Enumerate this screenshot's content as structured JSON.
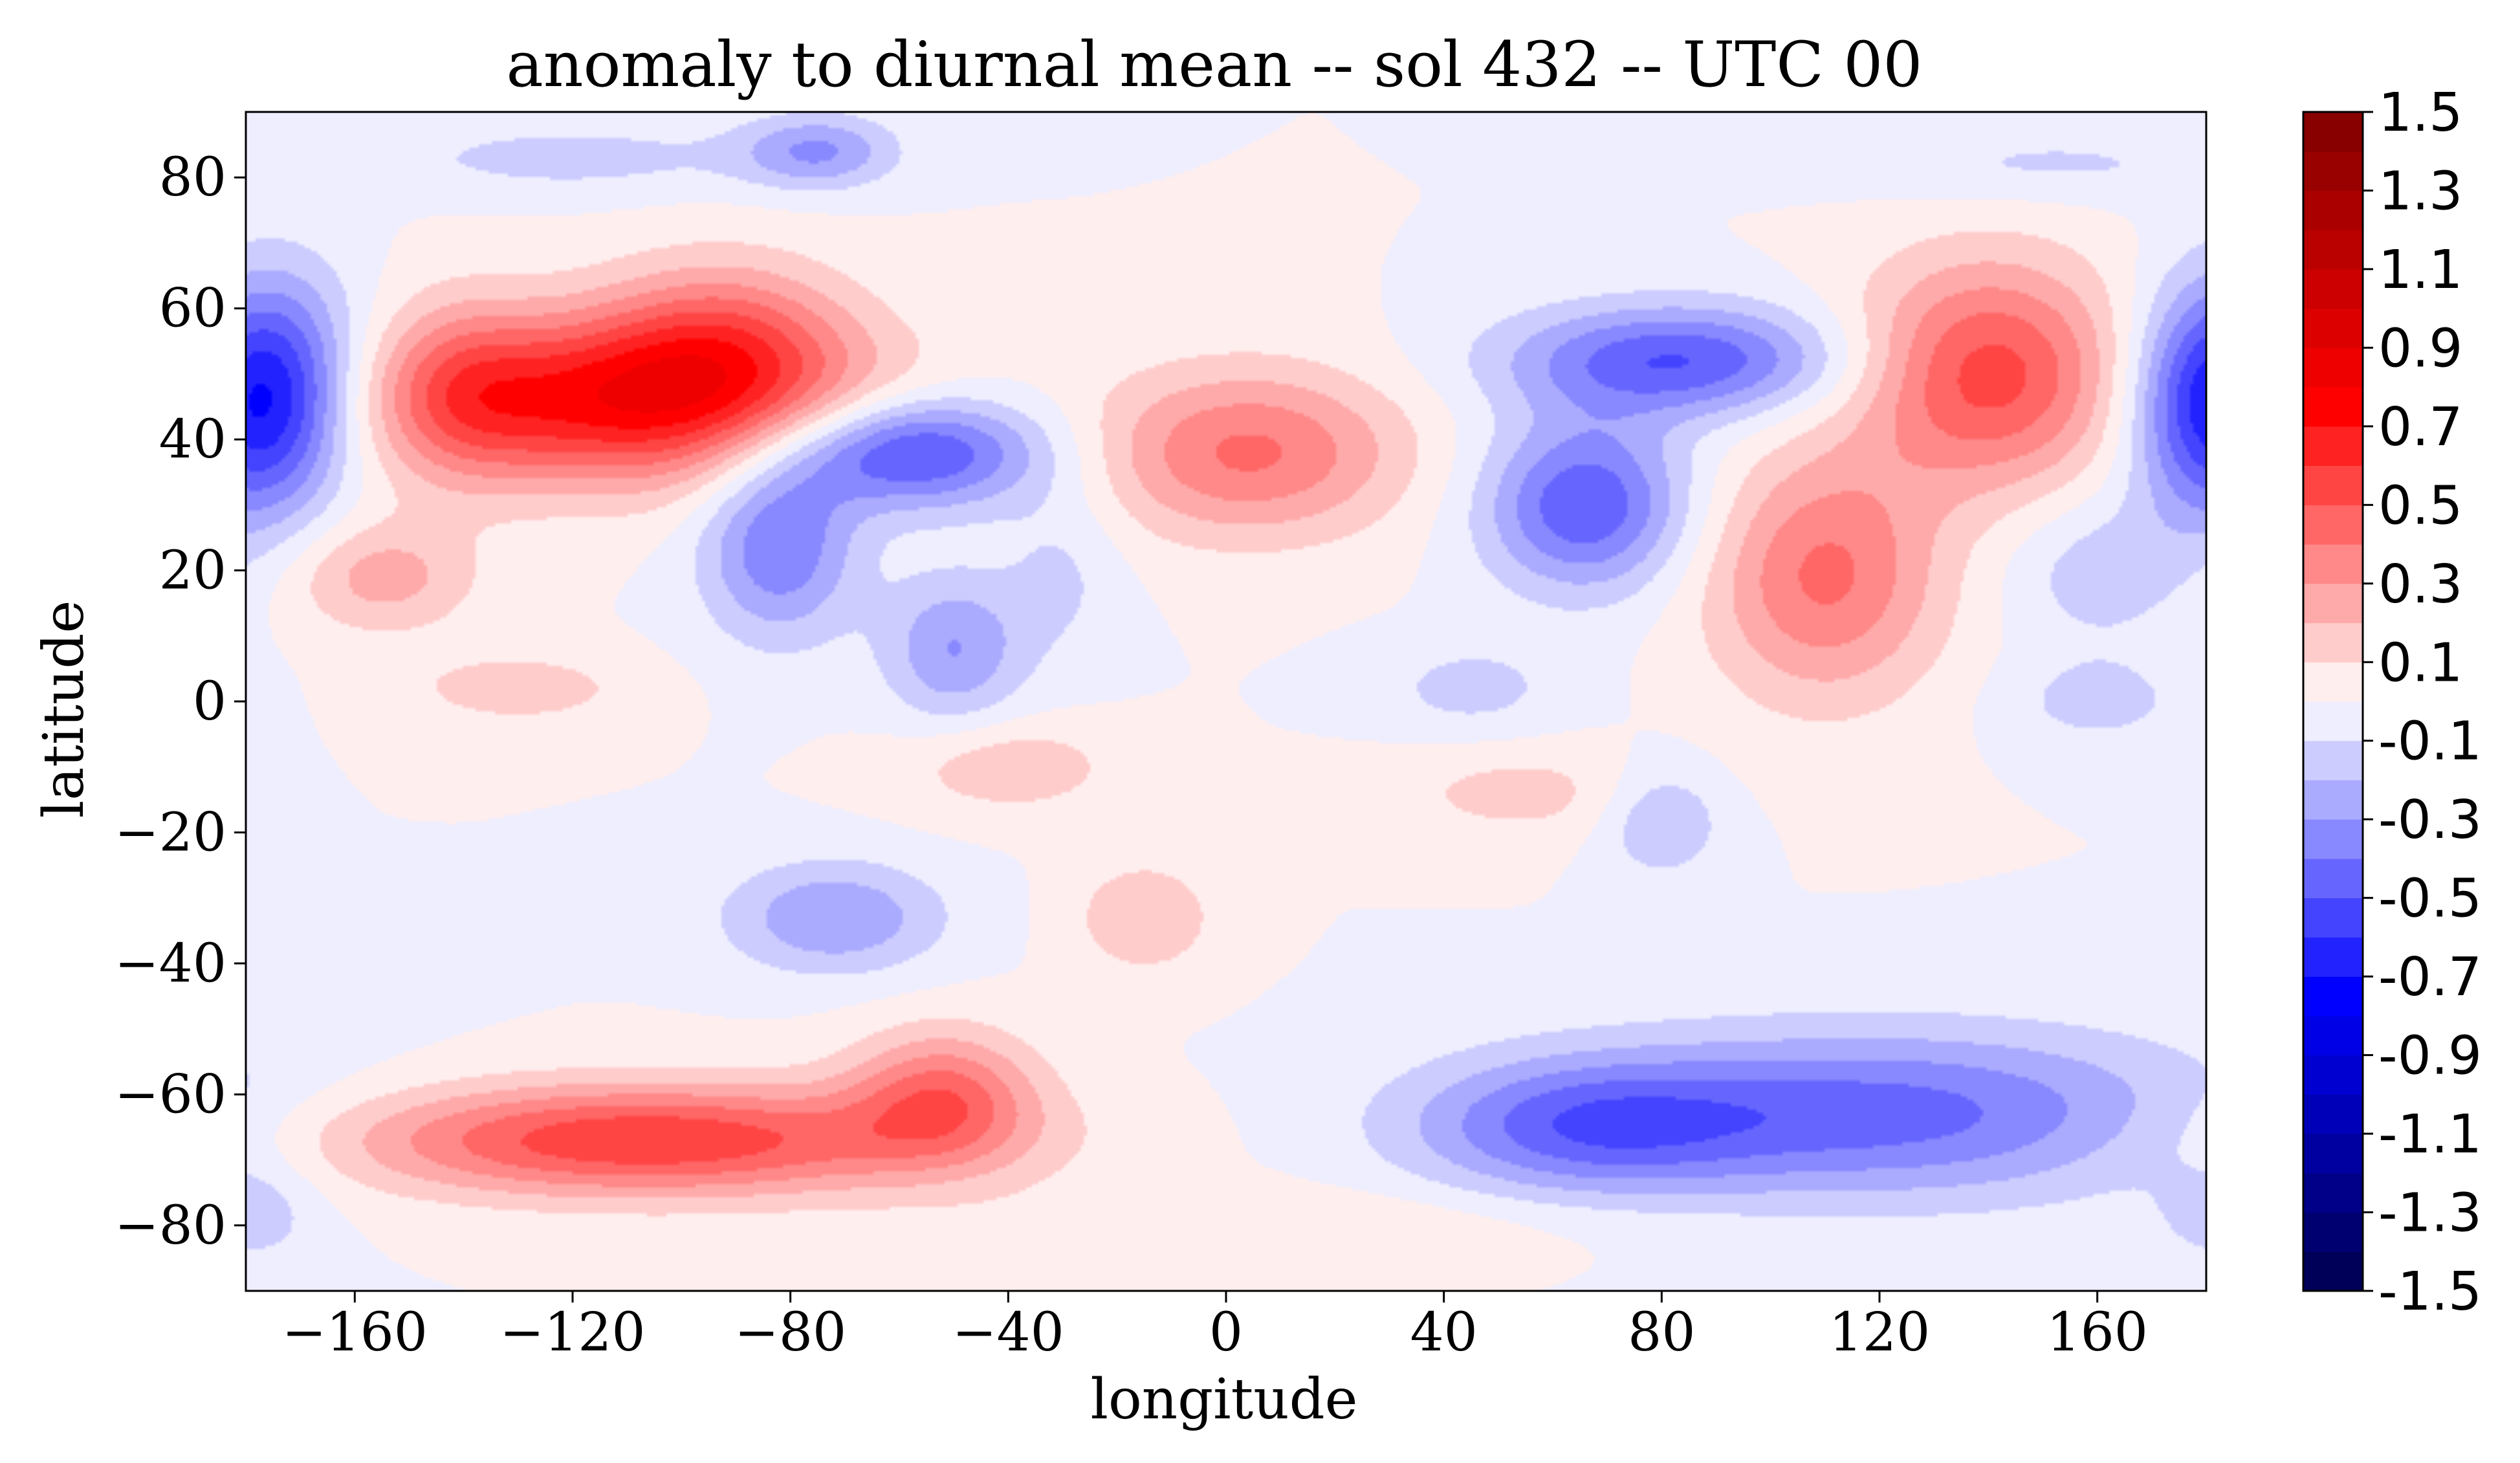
{
  "chart_data": {
    "type": "contour",
    "title": "anomaly to diurnal mean -- sol 432 -- UTC 00",
    "xlabel": "longitude",
    "ylabel": "latitude",
    "xlim": [
      -180,
      180
    ],
    "ylim": [
      -90,
      90
    ],
    "x_ticks": [
      -160,
      -120,
      -80,
      -40,
      0,
      40,
      80,
      120,
      160
    ],
    "x_tick_labels": [
      "−160",
      "−120",
      "−80",
      "−40",
      "0",
      "40",
      "80",
      "120",
      "160"
    ],
    "y_ticks": [
      80,
      60,
      40,
      20,
      0,
      -20,
      -40,
      -60,
      -80
    ],
    "y_tick_labels": [
      "80",
      "60",
      "40",
      "20",
      "0",
      "−20",
      "−40",
      "−60",
      "−80"
    ],
    "colorbar": {
      "min": -1.5,
      "max": 1.5,
      "step": 0.1,
      "colormap": "seismic",
      "tick_values": [
        1.5,
        1.3,
        1.1,
        0.9,
        0.7,
        0.5,
        0.3,
        0.1,
        -0.1,
        -0.3,
        -0.5,
        -0.7,
        -0.9,
        -1.1,
        -1.3,
        -1.5
      ],
      "tick_labels": [
        "1.5",
        "1.3",
        "1.1",
        "0.9",
        "0.7",
        "0.5",
        "0.3",
        "0.1",
        "-0.1",
        "-0.3",
        "-0.5",
        "-0.7",
        "-0.9",
        "-1.1",
        "-1.3",
        "-1.5"
      ]
    },
    "anomaly_centers": [
      {
        "lon": -112,
        "lat": 46,
        "amp": 0.72,
        "sx": 30,
        "sy": 9
      },
      {
        "lon": -92,
        "lat": 55,
        "amp": 0.35,
        "sx": 16,
        "sy": 9
      },
      {
        "lon": -58,
        "lat": 38,
        "amp": -0.58,
        "sx": 17,
        "sy": 6
      },
      {
        "lon": -82,
        "lat": 24,
        "amp": -0.4,
        "sx": 10,
        "sy": 10
      },
      {
        "lon": -50,
        "lat": 8,
        "amp": -0.3,
        "sx": 9,
        "sy": 8
      },
      {
        "lon": 4,
        "lat": 38,
        "amp": 0.42,
        "sx": 20,
        "sy": 9
      },
      {
        "lon": 83,
        "lat": 52,
        "amp": -0.5,
        "sx": 22,
        "sy": 6
      },
      {
        "lon": 66,
        "lat": 30,
        "amp": -0.5,
        "sx": 13,
        "sy": 9
      },
      {
        "lon": 110,
        "lat": 19,
        "amp": 0.42,
        "sx": 15,
        "sy": 13
      },
      {
        "lon": 140,
        "lat": 50,
        "amp": 0.55,
        "sx": 17,
        "sy": 12
      },
      {
        "lon": -174,
        "lat": 48,
        "amp": -0.45,
        "sx": 11,
        "sy": 12
      },
      {
        "lon": 180,
        "lat": 44,
        "amp": -0.4,
        "sx": 10,
        "sy": 12
      },
      {
        "lon": -107,
        "lat": -67,
        "amp": 0.6,
        "sx": 40,
        "sy": 6
      },
      {
        "lon": -52,
        "lat": -60,
        "amp": 0.4,
        "sx": 12,
        "sy": 7
      },
      {
        "lon": 120,
        "lat": -63,
        "amp": -0.45,
        "sx": 42,
        "sy": 9
      },
      {
        "lon": 65,
        "lat": -65,
        "amp": -0.35,
        "sx": 22,
        "sy": 7
      },
      {
        "lon": -72,
        "lat": -33,
        "amp": -0.3,
        "sx": 14,
        "sy": 6
      },
      {
        "lon": -155,
        "lat": 19,
        "amp": 0.25,
        "sx": 12,
        "sy": 6
      },
      {
        "lon": -130,
        "lat": 2,
        "amp": 0.16,
        "sx": 15,
        "sy": 4
      },
      {
        "lon": -15,
        "lat": -33,
        "amp": 0.2,
        "sx": 9,
        "sy": 6
      },
      {
        "lon": -40,
        "lat": -10,
        "amp": 0.18,
        "sx": 14,
        "sy": 5
      },
      {
        "lon": 55,
        "lat": -14,
        "amp": 0.14,
        "sx": 18,
        "sy": 5
      },
      {
        "lon": 80,
        "lat": -18,
        "amp": -0.22,
        "sx": 8,
        "sy": 6
      },
      {
        "lon": 45,
        "lat": 2,
        "amp": -0.14,
        "sx": 12,
        "sy": 5
      },
      {
        "lon": 160,
        "lat": 0,
        "amp": -0.14,
        "sx": 12,
        "sy": 5
      },
      {
        "lon": -75,
        "lat": 84,
        "amp": -0.3,
        "sx": 10,
        "sy": 4
      },
      {
        "lon": -120,
        "lat": 83,
        "amp": -0.14,
        "sx": 25,
        "sy": 4
      },
      {
        "lon": 150,
        "lat": 82,
        "amp": -0.12,
        "sx": 25,
        "sy": 4
      },
      {
        "lon": 160,
        "lat": 20,
        "amp": -0.16,
        "sx": 12,
        "sy": 8
      },
      {
        "lon": -140,
        "lat": 48,
        "amp": 0.2,
        "sx": 10,
        "sy": 10
      },
      {
        "lon": -30,
        "lat": 20,
        "amp": -0.12,
        "sx": 8,
        "sy": 10
      },
      {
        "lon": 10,
        "lat": -80,
        "amp": 0.1,
        "sx": 40,
        "sy": 4
      },
      {
        "lon": -178,
        "lat": -78,
        "amp": -0.14,
        "sx": 8,
        "sy": 6
      }
    ]
  }
}
